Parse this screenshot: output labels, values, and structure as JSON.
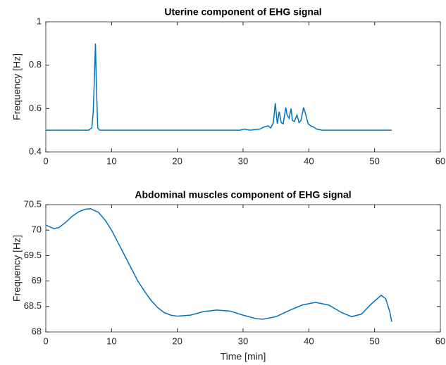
{
  "chart_data": [
    {
      "type": "line",
      "title": "Uterine component of EHG signal",
      "y_label": "Frequency [Hz]",
      "x": [
        0,
        6.5,
        7.0,
        7.2,
        7.4,
        7.55,
        7.7,
        7.9,
        8.2,
        15,
        29.5,
        30.2,
        31,
        32.5,
        33.2,
        33.8,
        34.2,
        34.6,
        34.9,
        35.2,
        35.5,
        35.8,
        36.1,
        36.5,
        36.7,
        37.0,
        37.3,
        37.5,
        37.8,
        38.2,
        38.5,
        38.8,
        39.2,
        39.5,
        39.9,
        40.3,
        40.7,
        41.2,
        42,
        52.6
      ],
      "values": [
        0.5,
        0.5,
        0.51,
        0.58,
        0.75,
        0.9,
        0.7,
        0.51,
        0.5,
        0.5,
        0.5,
        0.505,
        0.5,
        0.505,
        0.515,
        0.52,
        0.51,
        0.535,
        0.625,
        0.53,
        0.585,
        0.535,
        0.53,
        0.605,
        0.57,
        0.555,
        0.6,
        0.545,
        0.54,
        0.57,
        0.535,
        0.545,
        0.605,
        0.575,
        0.53,
        0.52,
        0.515,
        0.505,
        0.5,
        0.5
      ],
      "color": "#0072bd",
      "xlim": [
        0,
        60
      ],
      "xticks": [
        0,
        10,
        20,
        30,
        40,
        50,
        60
      ],
      "ylim": [
        0.4,
        1
      ],
      "yticks": [
        0.4,
        0.6,
        0.8,
        1
      ]
    },
    {
      "type": "line",
      "title": "Abdominal muscles component of EHG signal",
      "x_label": "Time [min]",
      "y_label": "Frequency [Hz]",
      "x": [
        0,
        0.5,
        1.2,
        2,
        3,
        4,
        5,
        6,
        6.8,
        8,
        9,
        10,
        11,
        12,
        13,
        14,
        15,
        16,
        17,
        18,
        19,
        20,
        22,
        24,
        26,
        28,
        30,
        32,
        33,
        35,
        37,
        39,
        41,
        43,
        45,
        46.5,
        48,
        49.5,
        51,
        51.7,
        52.3,
        52.6
      ],
      "values": [
        70.1,
        70.07,
        70.03,
        70.05,
        70.15,
        70.27,
        70.36,
        70.41,
        70.42,
        70.35,
        70.2,
        70.0,
        69.75,
        69.5,
        69.25,
        69.0,
        68.8,
        68.62,
        68.48,
        68.38,
        68.33,
        68.31,
        68.33,
        68.4,
        68.43,
        68.41,
        68.33,
        68.26,
        68.25,
        68.3,
        68.42,
        68.53,
        68.58,
        68.53,
        68.38,
        68.3,
        68.35,
        68.55,
        68.72,
        68.65,
        68.4,
        68.2
      ],
      "color": "#0072bd",
      "xlim": [
        0,
        60
      ],
      "xticks": [
        0,
        10,
        20,
        30,
        40,
        50,
        60
      ],
      "ylim": [
        68,
        70.5
      ],
      "yticks": [
        68,
        68.5,
        69,
        69.5,
        70,
        70.5
      ]
    }
  ]
}
